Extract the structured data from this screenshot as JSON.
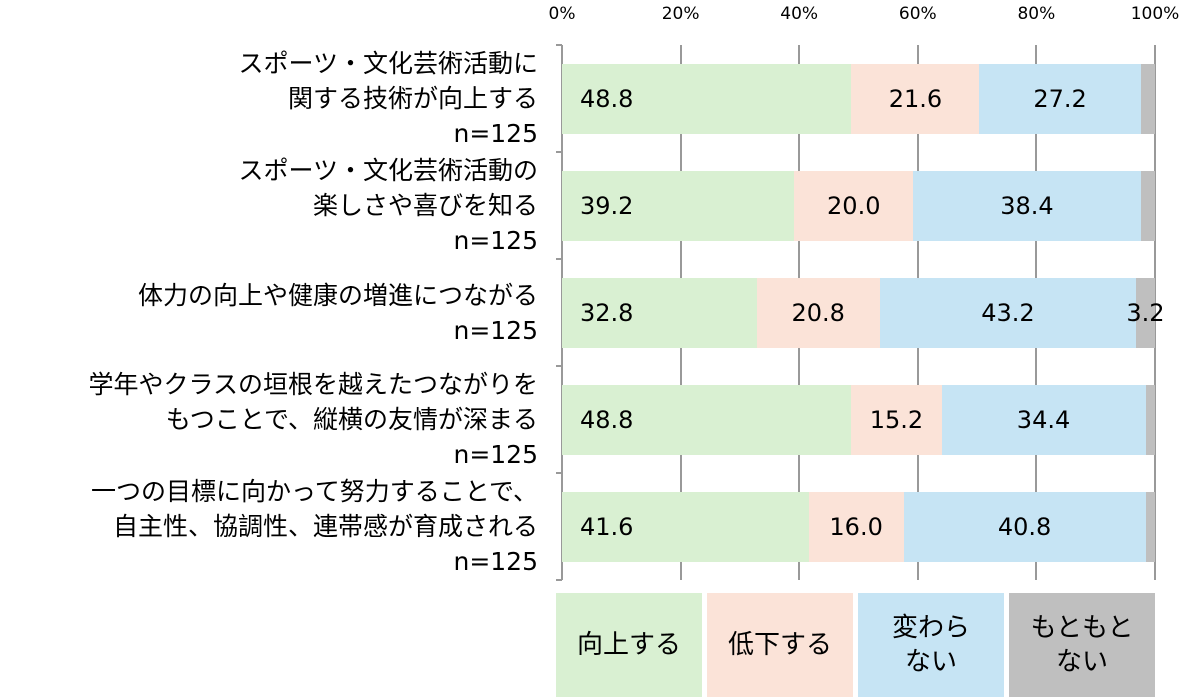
{
  "chart_data": {
    "type": "stacked-barh",
    "categories": [
      "スポーツ・文化芸術活動に\n関する技術が向上する\nn=125",
      "スポーツ・文化芸術活動の\n楽しさや喜びを知る\nn=125",
      "体力の向上や健康の増進につながる\nn=125",
      "学年やクラスの垣根を越えたつながりを\nもつことで、縦横の友情が深まる\nn=125",
      "一つの目標に向かって努力することで、\n自主性、協調性、連帯感が育成される\nn=125"
    ],
    "series": [
      {
        "name": "向上する",
        "color": "#d9f0d2",
        "values": [
          48.8,
          39.2,
          32.8,
          48.8,
          41.6
        ],
        "value_labels": [
          "48.8",
          "39.2",
          "32.8",
          "48.8",
          "41.6"
        ]
      },
      {
        "name": "低下する",
        "color": "#fbe3d8",
        "values": [
          21.6,
          20.0,
          20.8,
          15.2,
          16.0
        ],
        "value_labels": [
          "21.6",
          "20.0",
          "20.8",
          "15.2",
          "16.0"
        ]
      },
      {
        "name": "変わら\nない",
        "color": "#c6e4f4",
        "values": [
          27.2,
          38.4,
          43.2,
          34.4,
          40.8
        ],
        "value_labels": [
          "27.2",
          "38.4",
          "43.2",
          "34.4",
          "40.8"
        ]
      },
      {
        "name": "もともと\nない",
        "color": "#bfbfbf",
        "values": [
          2.4,
          2.4,
          3.2,
          1.6,
          1.6
        ],
        "value_labels": [
          null,
          null,
          "3.2",
          null,
          null
        ]
      }
    ],
    "xlim": [
      0,
      100
    ],
    "xticks": [
      {
        "value": 0,
        "label": "0%"
      },
      {
        "value": 20,
        "label": "20%"
      },
      {
        "value": 40,
        "label": "40%"
      },
      {
        "value": 60,
        "label": "60%"
      },
      {
        "value": 80,
        "label": "80%"
      },
      {
        "value": 100,
        "label": "100%"
      }
    ],
    "grid": true
  }
}
